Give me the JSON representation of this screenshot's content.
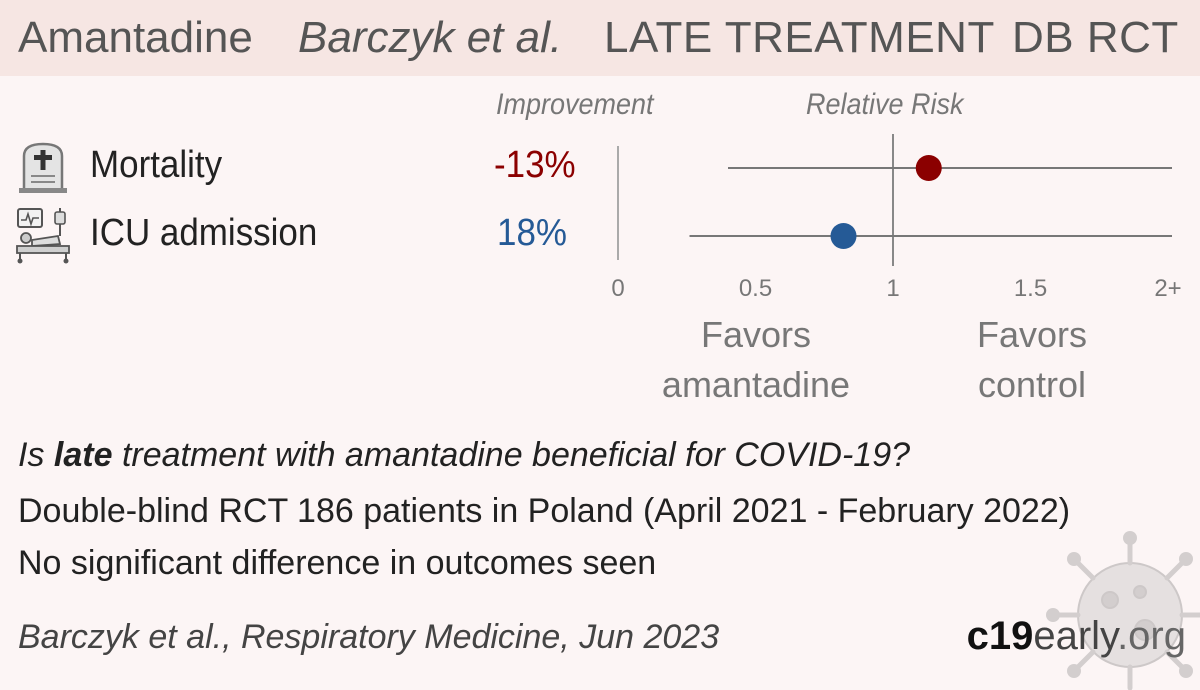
{
  "header": {
    "drug": "Amantadine",
    "authors": "Barczyk et al.",
    "stage": "LATE TREATMENT",
    "design": "DB RCT"
  },
  "columns": {
    "improvement": "Improvement",
    "relative_risk": "Relative Risk"
  },
  "chart_data": {
    "type": "scatter",
    "subtype": "forest-plot",
    "outcomes": [
      {
        "label": "Mortality",
        "improvement": "-13%",
        "rr": 1.13,
        "ci": [
          0.4,
          2.0
        ],
        "ci_upper_truncated": true,
        "color": "#8b0000",
        "icon": "tombstone-icon"
      },
      {
        "label": "ICU admission",
        "improvement": "18%",
        "rr": 0.82,
        "ci": [
          0.26,
          2.0
        ],
        "ci_upper_truncated": true,
        "color": "#255a96",
        "icon": "hospital-bed-icon"
      }
    ],
    "x_ticks": [
      "0",
      "0.5",
      "1",
      "1.5",
      "2+"
    ],
    "x_tick_values": [
      0,
      0.5,
      1,
      1.5,
      2
    ],
    "xlim": [
      0,
      2
    ],
    "reference_line": 1,
    "favors_left": "Favors amantadine",
    "favors_right": "Favors control"
  },
  "favors": {
    "left_line1": "Favors",
    "left_line2": "amantadine",
    "right_line1": "Favors",
    "right_line2": "control"
  },
  "question": {
    "prefix": "Is ",
    "emphasis": "late",
    "suffix": " treatment with amantadine beneficial for COVID-19?"
  },
  "details": [
    "Double-blind RCT 186 patients in Poland (April 2021 - February 2022)",
    "No significant difference in outcomes seen"
  ],
  "citation": "Barczyk et al., Respiratory Medicine, Jun 2023",
  "brand": {
    "bold": "c19",
    "regular": "early",
    "light": ".org"
  }
}
